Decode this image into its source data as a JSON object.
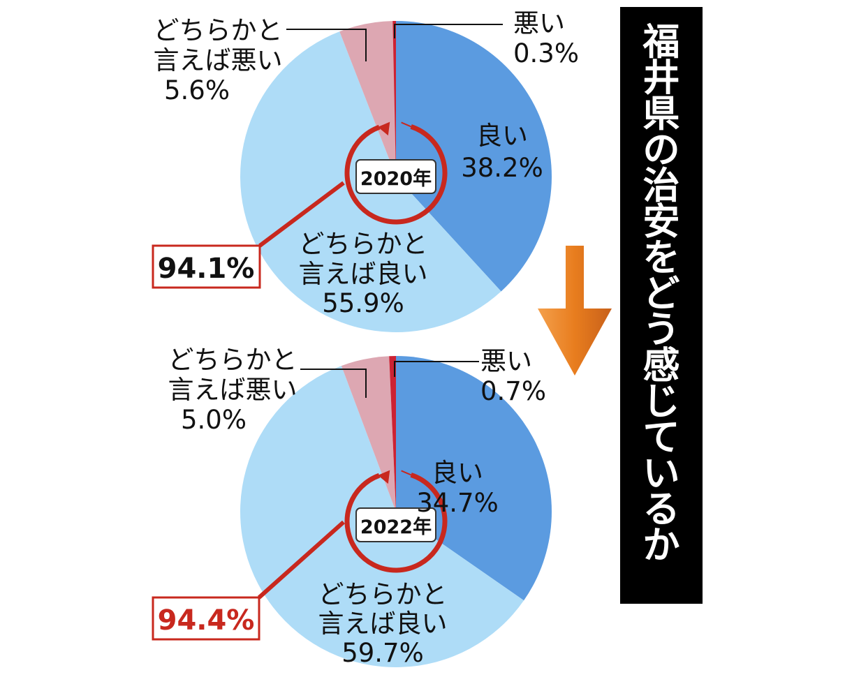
{
  "title": "福井県の治安をどう感じているか",
  "colors": {
    "good": "#5b9be0",
    "somewhat_good": "#aedcf7",
    "somewhat_bad": "#dda7b2",
    "bad": "#cc2233",
    "accent": "#c8281e",
    "arrow": "#e87d1e"
  },
  "chart_data": [
    {
      "type": "pie",
      "year_label": "2020年",
      "total_label": "94.1%",
      "slices": [
        {
          "label": "良い",
          "value": 38.2,
          "value_label": "38.2%"
        },
        {
          "label": "どちらかと言えば良い",
          "label_lines": [
            "どちらかと",
            "言えば良い"
          ],
          "value": 55.9,
          "value_label": "55.9%"
        },
        {
          "label": "どちらかと言えば悪い",
          "label_lines": [
            "どちらかと",
            "言えば悪い"
          ],
          "value": 5.6,
          "value_label": "5.6%"
        },
        {
          "label": "悪い",
          "value": 0.3,
          "value_label": "0.3%"
        }
      ]
    },
    {
      "type": "pie",
      "year_label": "2022年",
      "total_label": "94.4%",
      "slices": [
        {
          "label": "良い",
          "value": 34.7,
          "value_label": "34.7%"
        },
        {
          "label": "どちらかと言えば良い",
          "label_lines": [
            "どちらかと",
            "言えば良い"
          ],
          "value": 59.7,
          "value_label": "59.7%"
        },
        {
          "label": "どちらかと言えば悪い",
          "label_lines": [
            "どちらかと",
            "言えば悪い"
          ],
          "value": 5.0,
          "value_label": "5.0%"
        },
        {
          "label": "悪い",
          "value": 0.7,
          "value_label": "0.7%"
        }
      ]
    }
  ]
}
